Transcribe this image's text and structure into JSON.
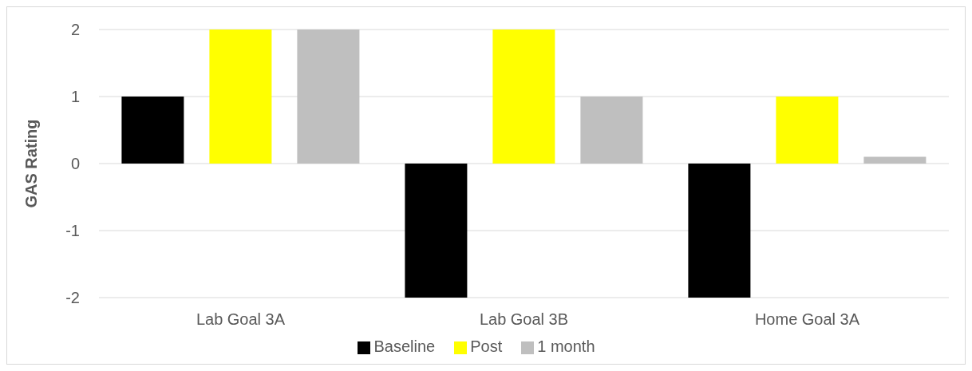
{
  "chart_data": {
    "type": "bar",
    "ylabel": "GAS Rating",
    "categories": [
      "Lab Goal 3A",
      "Lab Goal 3B",
      "Home Goal 3A"
    ],
    "series": [
      {
        "name": "Baseline",
        "color": "#000000",
        "values": [
          1,
          -2,
          -2
        ]
      },
      {
        "name": "Post",
        "color": "#ffff00",
        "values": [
          2,
          2,
          1
        ]
      },
      {
        "name": "1 month",
        "color": "#bfbfbf",
        "values": [
          2,
          1,
          0.1
        ]
      }
    ],
    "ylim": [
      -2,
      2
    ],
    "yticks": [
      -2,
      -1,
      0,
      1,
      2
    ],
    "grid": "y",
    "legend": "bottom"
  }
}
